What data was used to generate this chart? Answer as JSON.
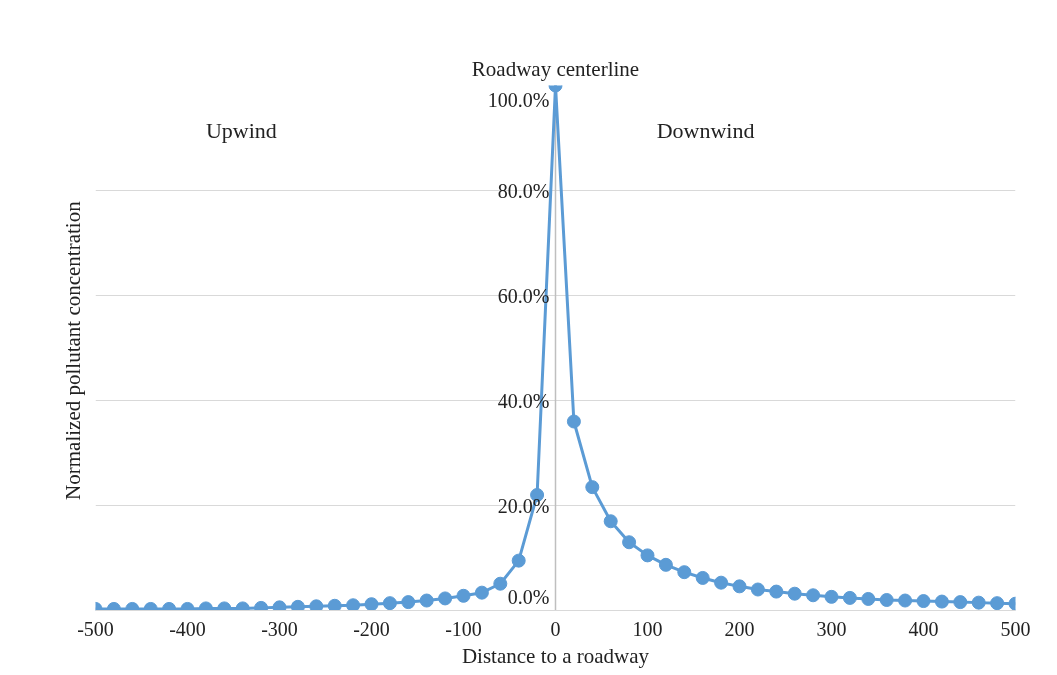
{
  "chart_data": {
    "type": "line",
    "xlabel": "Distance to a roadway",
    "ylabel": "Normalized  pollutant concentration",
    "x": [
      -500,
      -480,
      -460,
      -440,
      -420,
      -400,
      -380,
      -360,
      -340,
      -320,
      -300,
      -280,
      -260,
      -240,
      -220,
      -200,
      -180,
      -160,
      -140,
      -120,
      -100,
      -80,
      -60,
      -40,
      -20,
      0,
      20,
      40,
      60,
      80,
      100,
      120,
      140,
      160,
      180,
      200,
      220,
      240,
      260,
      280,
      300,
      320,
      340,
      360,
      380,
      400,
      420,
      440,
      460,
      480,
      500
    ],
    "series": [
      {
        "color": "#5b9bd5",
        "values": [
          0.3,
          0.3,
          0.3,
          0.3,
          0.3,
          0.3,
          0.4,
          0.4,
          0.4,
          0.5,
          0.6,
          0.7,
          0.8,
          0.9,
          1.0,
          1.2,
          1.4,
          1.6,
          1.9,
          2.3,
          2.8,
          3.4,
          5.1,
          9.5,
          22,
          100,
          36,
          23.5,
          17,
          13,
          10.5,
          8.7,
          7.3,
          6.2,
          5.3,
          4.6,
          4.0,
          3.6,
          3.2,
          2.9,
          2.6,
          2.4,
          2.2,
          2.0,
          1.9,
          1.8,
          1.7,
          1.6,
          1.5,
          1.4,
          1.3
        ]
      }
    ],
    "xlim": [
      -500,
      500
    ],
    "xticks": [
      -500,
      -400,
      -300,
      -200,
      -100,
      0,
      100,
      200,
      300,
      400,
      500
    ],
    "ylim": [
      0,
      100
    ],
    "yticks": [
      {
        "value": 0,
        "label": "0.0%"
      },
      {
        "value": 20,
        "label": "20.0%"
      },
      {
        "value": 40,
        "label": "40.0%"
      },
      {
        "value": 60,
        "label": "60.0%"
      },
      {
        "value": 80,
        "label": "80.0%"
      },
      {
        "value": 100,
        "label": "100.0%"
      }
    ],
    "annotations": [
      "Roadway centerline",
      "Upwind",
      "Downwind"
    ],
    "grid": "y",
    "marker": "circle",
    "line_style": "solid"
  }
}
